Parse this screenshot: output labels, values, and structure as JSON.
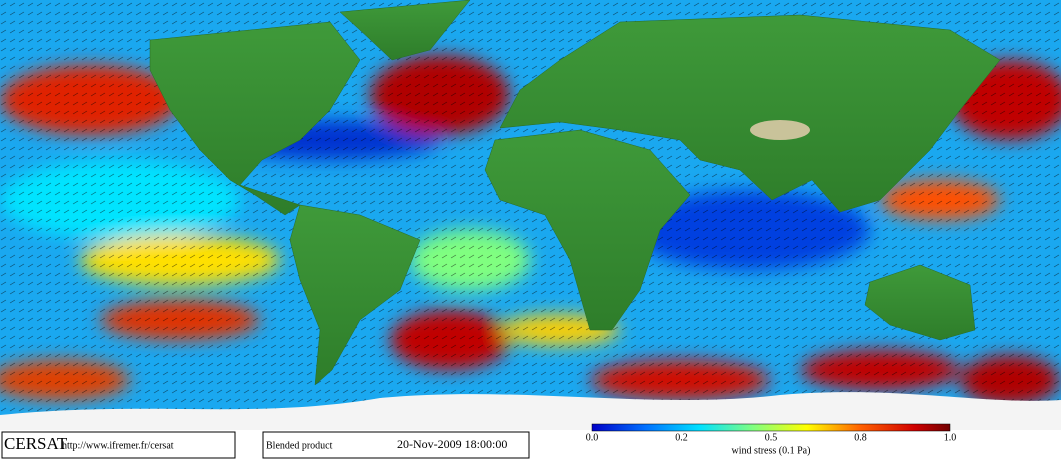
{
  "logo": "CERSAT",
  "url": "http://www.ifremer.fr/cersat",
  "product": "Blended product",
  "timestamp": "20-Nov-2009 18:00:00",
  "colorbar": {
    "ticks": [
      "0.0",
      "0.2",
      "0.5",
      "0.8",
      "1.0"
    ],
    "label": "wind stress (0.1 Pa)"
  }
}
